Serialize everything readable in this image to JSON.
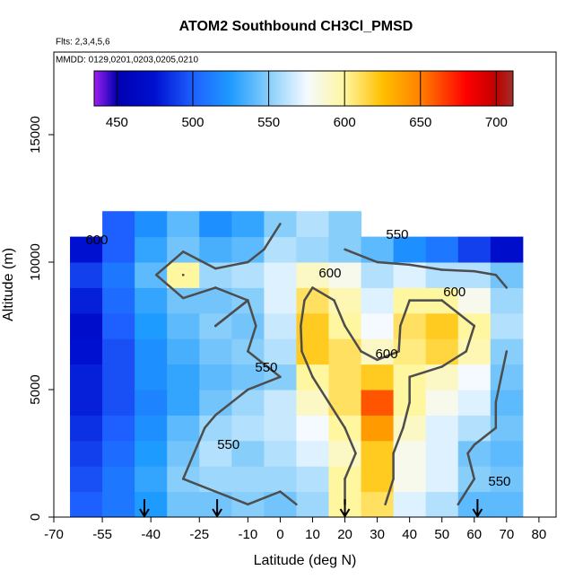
{
  "chart_data": {
    "type": "heatmap",
    "title": "ATOM2 Southbound CH3Cl_PMSD",
    "subtitle": "Flts: 2,3,4,5,6",
    "note": "MMDD: 0129,0201,0203,0205,0210",
    "x_label": "Latitude (deg N)",
    "y_label": "Altitude (m)",
    "xlim": [
      -70,
      85.3
    ],
    "ylim": [
      0,
      18240
    ],
    "xticks": [
      -70,
      -55,
      -40,
      -25,
      -10,
      0,
      10,
      20,
      30,
      40,
      50,
      60,
      70,
      80
    ],
    "yticks": [
      0,
      5000,
      10000,
      15000
    ],
    "lat_bins": [
      -65,
      -55,
      -45,
      -35,
      -25,
      -15,
      -5,
      5,
      15,
      25,
      35,
      45,
      55,
      65,
      75
    ],
    "alt_bins": [
      0,
      1000,
      2000,
      3000,
      4000,
      5000,
      6000,
      7000,
      8000,
      9000,
      10000,
      11000,
      12000
    ],
    "values": [
      [
        500,
        510,
        525,
        545,
        545,
        550,
        545,
        555,
        600,
        610,
        570,
        560,
        540,
        540
      ],
      [
        495,
        510,
        530,
        550,
        555,
        555,
        555,
        560,
        600,
        620,
        580,
        570,
        550,
        545
      ],
      [
        490,
        505,
        525,
        545,
        560,
        550,
        560,
        570,
        590,
        620,
        580,
        570,
        545,
        540
      ],
      [
        485,
        500,
        520,
        540,
        555,
        560,
        565,
        575,
        600,
        640,
        590,
        570,
        560,
        545
      ],
      [
        480,
        495,
        515,
        530,
        545,
        555,
        565,
        590,
        610,
        660,
        600,
        580,
        570,
        540
      ],
      [
        480,
        495,
        520,
        530,
        540,
        545,
        550,
        600,
        610,
        620,
        600,
        590,
        575,
        545
      ],
      [
        475,
        495,
        520,
        535,
        545,
        550,
        560,
        620,
        610,
        590,
        605,
        615,
        595,
        550
      ],
      [
        470,
        500,
        525,
        540,
        550,
        545,
        565,
        620,
        600,
        575,
        610,
        620,
        600,
        560
      ],
      [
        480,
        505,
        530,
        545,
        545,
        550,
        570,
        610,
        595,
        570,
        600,
        600,
        580,
        555
      ],
      [
        490,
        510,
        540,
        600,
        555,
        560,
        570,
        590,
        580,
        560,
        570,
        560,
        560,
        545
      ],
      [
        475,
        500,
        530,
        545,
        535,
        540,
        560,
        555,
        550,
        540,
        520,
        510,
        490,
        470
      ],
      [
        null,
        500,
        520,
        540,
        520,
        530,
        550,
        560,
        550,
        null,
        null,
        null,
        null,
        null
      ]
    ],
    "contour_levels": [
      550,
      600
    ],
    "contour_color": "#4d4d4d",
    "annotations": [
      {
        "text": "550",
        "x": -4.3,
        "y": 5845
      },
      {
        "text": "550",
        "x": -16,
        "y": 2817
      },
      {
        "text": "550",
        "x": 36.2,
        "y": 11056
      },
      {
        "text": "600",
        "x": 53.9,
        "y": 8803
      },
      {
        "text": "600",
        "x": 32.9,
        "y": 6373
      },
      {
        "text": "600",
        "x": 15.4,
        "y": 9542
      },
      {
        "text": "600",
        "x": -56.7,
        "y": 10845
      },
      {
        "text": "550",
        "x": 67.8,
        "y": 1373
      }
    ],
    "arrows_x": [
      -42,
      -19.5,
      20,
      61
    ],
    "colorbar": {
      "lim": [
        435,
        711
      ],
      "ticks": [
        450,
        500,
        550,
        600,
        650,
        700
      ],
      "stops": [
        [
          435,
          "#a020f0"
        ],
        [
          450,
          "#0000b0"
        ],
        [
          475,
          "#0010d0"
        ],
        [
          500,
          "#1e60ff"
        ],
        [
          525,
          "#1e9bff"
        ],
        [
          550,
          "#87cefa"
        ],
        [
          575,
          "#f4faff"
        ],
        [
          600,
          "#fff6a0"
        ],
        [
          625,
          "#ffc000"
        ],
        [
          650,
          "#ff8000"
        ],
        [
          680,
          "#ff0000"
        ],
        [
          700,
          "#c00000"
        ],
        [
          711,
          "#a0302a"
        ]
      ]
    }
  }
}
